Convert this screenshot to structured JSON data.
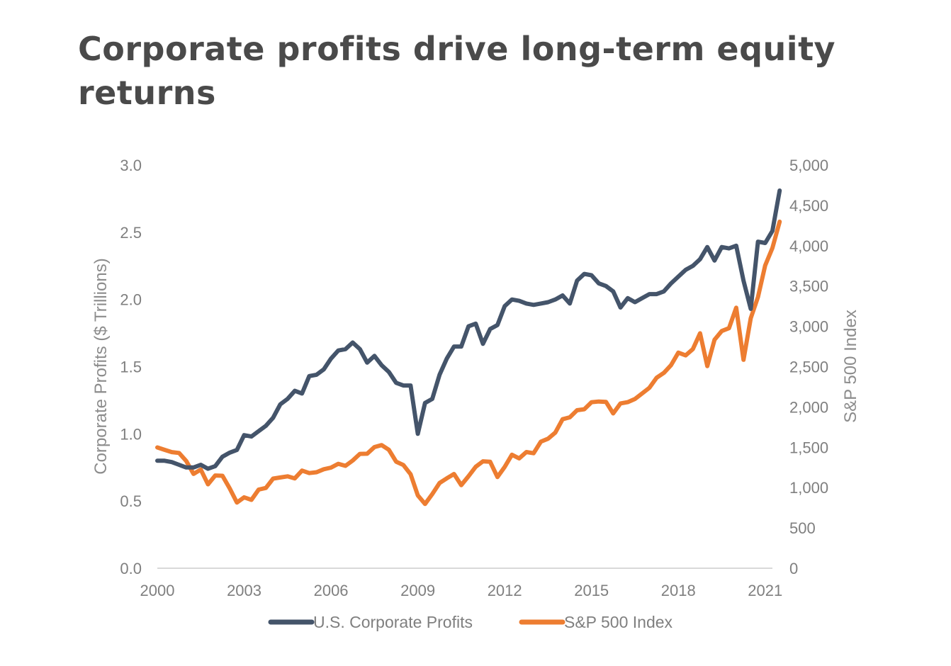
{
  "page": {
    "title": "Corporate profits drive long-term equity returns"
  },
  "chart_data": {
    "type": "line",
    "title": "Corporate profits drive long-term equity returns",
    "xlabel": "",
    "x_ticks": [
      "2000",
      "2003",
      "2006",
      "2009",
      "2012",
      "2015",
      "2018",
      "2021"
    ],
    "xlim": [
      2000,
      2021.25
    ],
    "y_left": {
      "label": "Corporate Profits ($ Trillions)",
      "lim": [
        0,
        3.0
      ],
      "ticks": [
        "0.0",
        "0.5",
        "1.0",
        "1.5",
        "2.0",
        "2.5",
        "3.0"
      ]
    },
    "y_right": {
      "label": "S&P 500 Index",
      "lim": [
        0,
        5000
      ],
      "ticks": [
        "0",
        "500",
        "1,000",
        "1,500",
        "2,000",
        "2,500",
        "3,000",
        "3,500",
        "4,000",
        "4,500",
        "5,000"
      ]
    },
    "grid": false,
    "legend": "bottom",
    "series": [
      {
        "name": "U.S. Corporate Profits",
        "axis": "left",
        "color": "#44546a",
        "points": [
          [
            2000.0,
            0.8
          ],
          [
            2000.25,
            0.8
          ],
          [
            2000.5,
            0.79
          ],
          [
            2000.75,
            0.77
          ],
          [
            2001.0,
            0.75
          ],
          [
            2001.25,
            0.75
          ],
          [
            2001.5,
            0.77
          ],
          [
            2001.75,
            0.74
          ],
          [
            2002.0,
            0.76
          ],
          [
            2002.25,
            0.83
          ],
          [
            2002.5,
            0.86
          ],
          [
            2002.75,
            0.88
          ],
          [
            2003.0,
            0.99
          ],
          [
            2003.25,
            0.98
          ],
          [
            2003.5,
            1.02
          ],
          [
            2003.75,
            1.06
          ],
          [
            2004.0,
            1.12
          ],
          [
            2004.25,
            1.22
          ],
          [
            2004.5,
            1.26
          ],
          [
            2004.75,
            1.32
          ],
          [
            2005.0,
            1.3
          ],
          [
            2005.25,
            1.43
          ],
          [
            2005.5,
            1.44
          ],
          [
            2005.75,
            1.48
          ],
          [
            2006.0,
            1.56
          ],
          [
            2006.25,
            1.62
          ],
          [
            2006.5,
            1.63
          ],
          [
            2006.75,
            1.68
          ],
          [
            2007.0,
            1.63
          ],
          [
            2007.25,
            1.53
          ],
          [
            2007.5,
            1.58
          ],
          [
            2007.75,
            1.51
          ],
          [
            2008.0,
            1.46
          ],
          [
            2008.25,
            1.38
          ],
          [
            2008.5,
            1.36
          ],
          [
            2008.75,
            1.36
          ],
          [
            2009.0,
            1.0
          ],
          [
            2009.25,
            1.23
          ],
          [
            2009.5,
            1.26
          ],
          [
            2009.75,
            1.44
          ],
          [
            2010.0,
            1.56
          ],
          [
            2010.25,
            1.65
          ],
          [
            2010.5,
            1.65
          ],
          [
            2010.75,
            1.8
          ],
          [
            2011.0,
            1.82
          ],
          [
            2011.25,
            1.67
          ],
          [
            2011.5,
            1.78
          ],
          [
            2011.75,
            1.81
          ],
          [
            2012.0,
            1.95
          ],
          [
            2012.25,
            2.0
          ],
          [
            2012.5,
            1.99
          ],
          [
            2012.75,
            1.97
          ],
          [
            2013.0,
            1.96
          ],
          [
            2013.25,
            1.97
          ],
          [
            2013.5,
            1.98
          ],
          [
            2013.75,
            2.0
          ],
          [
            2014.0,
            2.03
          ],
          [
            2014.25,
            1.97
          ],
          [
            2014.5,
            2.14
          ],
          [
            2014.75,
            2.19
          ],
          [
            2015.0,
            2.18
          ],
          [
            2015.25,
            2.12
          ],
          [
            2015.5,
            2.1
          ],
          [
            2015.75,
            2.06
          ],
          [
            2016.0,
            1.94
          ],
          [
            2016.25,
            2.01
          ],
          [
            2016.5,
            1.98
          ],
          [
            2016.75,
            2.01
          ],
          [
            2017.0,
            2.04
          ],
          [
            2017.25,
            2.04
          ],
          [
            2017.5,
            2.06
          ],
          [
            2017.75,
            2.12
          ],
          [
            2018.0,
            2.17
          ],
          [
            2018.25,
            2.22
          ],
          [
            2018.5,
            2.25
          ],
          [
            2018.75,
            2.3
          ],
          [
            2019.0,
            2.39
          ],
          [
            2019.25,
            2.29
          ],
          [
            2019.5,
            2.39
          ],
          [
            2019.75,
            2.38
          ],
          [
            2020.0,
            2.4
          ],
          [
            2020.25,
            2.14
          ],
          [
            2020.5,
            1.93
          ],
          [
            2020.75,
            2.43
          ],
          [
            2021.0,
            2.42
          ],
          [
            2021.25,
            2.51
          ],
          [
            2021.5,
            2.81
          ]
        ]
      },
      {
        "name": "S&P 500 Index",
        "axis": "right",
        "color": "#ed7d31",
        "points": [
          [
            2000.0,
            1498
          ],
          [
            2000.25,
            1468
          ],
          [
            2000.5,
            1440
          ],
          [
            2000.75,
            1430
          ],
          [
            2001.0,
            1330
          ],
          [
            2001.25,
            1170
          ],
          [
            2001.5,
            1224
          ],
          [
            2001.75,
            1040
          ],
          [
            2002.0,
            1150
          ],
          [
            2002.25,
            1147
          ],
          [
            2002.5,
            990
          ],
          [
            2002.75,
            815
          ],
          [
            2003.0,
            880
          ],
          [
            2003.25,
            848
          ],
          [
            2003.5,
            975
          ],
          [
            2003.75,
            996
          ],
          [
            2004.0,
            1112
          ],
          [
            2004.25,
            1126
          ],
          [
            2004.5,
            1140
          ],
          [
            2004.75,
            1114
          ],
          [
            2005.0,
            1211
          ],
          [
            2005.25,
            1180
          ],
          [
            2005.5,
            1191
          ],
          [
            2005.75,
            1228
          ],
          [
            2006.0,
            1248
          ],
          [
            2006.25,
            1295
          ],
          [
            2006.5,
            1270
          ],
          [
            2006.75,
            1336
          ],
          [
            2007.0,
            1418
          ],
          [
            2007.25,
            1420
          ],
          [
            2007.5,
            1503
          ],
          [
            2007.75,
            1527
          ],
          [
            2008.0,
            1468
          ],
          [
            2008.25,
            1322
          ],
          [
            2008.5,
            1280
          ],
          [
            2008.75,
            1166
          ],
          [
            2009.0,
            903
          ],
          [
            2009.25,
            797
          ],
          [
            2009.5,
            919
          ],
          [
            2009.75,
            1057
          ],
          [
            2010.0,
            1115
          ],
          [
            2010.25,
            1169
          ],
          [
            2010.5,
            1031
          ],
          [
            2010.75,
            1141
          ],
          [
            2011.0,
            1258
          ],
          [
            2011.25,
            1326
          ],
          [
            2011.5,
            1320
          ],
          [
            2011.75,
            1131
          ],
          [
            2012.0,
            1257
          ],
          [
            2012.25,
            1408
          ],
          [
            2012.5,
            1362
          ],
          [
            2012.75,
            1441
          ],
          [
            2013.0,
            1426
          ],
          [
            2013.25,
            1569
          ],
          [
            2013.5,
            1606
          ],
          [
            2013.75,
            1682
          ],
          [
            2014.0,
            1848
          ],
          [
            2014.25,
            1872
          ],
          [
            2014.5,
            1960
          ],
          [
            2014.75,
            1972
          ],
          [
            2015.0,
            2059
          ],
          [
            2015.25,
            2068
          ],
          [
            2015.5,
            2063
          ],
          [
            2015.75,
            1920
          ],
          [
            2016.0,
            2044
          ],
          [
            2016.25,
            2060
          ],
          [
            2016.5,
            2099
          ],
          [
            2016.75,
            2168
          ],
          [
            2017.0,
            2238
          ],
          [
            2017.25,
            2363
          ],
          [
            2017.5,
            2423
          ],
          [
            2017.75,
            2519
          ],
          [
            2018.0,
            2674
          ],
          [
            2018.25,
            2640
          ],
          [
            2018.5,
            2718
          ],
          [
            2018.75,
            2914
          ],
          [
            2019.0,
            2507
          ],
          [
            2019.25,
            2834
          ],
          [
            2019.5,
            2942
          ],
          [
            2019.75,
            2977
          ],
          [
            2020.0,
            3231
          ],
          [
            2020.25,
            2585
          ],
          [
            2020.5,
            3100
          ],
          [
            2020.75,
            3363
          ],
          [
            2021.0,
            3756
          ],
          [
            2021.25,
            3972
          ],
          [
            2021.5,
            4298
          ]
        ]
      }
    ]
  }
}
